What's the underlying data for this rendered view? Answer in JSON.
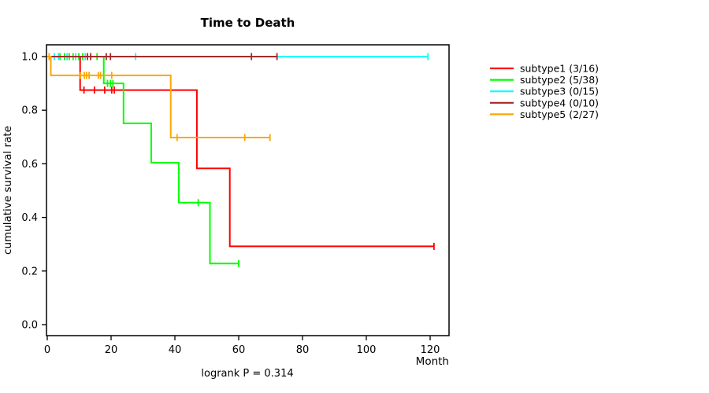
{
  "title": "Time to Death",
  "axes": {
    "x": {
      "label": "Month",
      "ticks": [
        "0",
        "20",
        "40",
        "60",
        "80",
        "100",
        "120"
      ],
      "tick_values": [
        0,
        20,
        40,
        60,
        80,
        100,
        120
      ]
    },
    "y": {
      "label": "cumulative survival rate",
      "ticks": [
        "0.0",
        "0.2",
        "0.4",
        "0.6",
        "0.8",
        "1.0"
      ],
      "tick_values": [
        0,
        0.2,
        0.4,
        0.6,
        0.8,
        1.0
      ]
    }
  },
  "footer": {
    "logrank_text": "logrank P = 0.314"
  },
  "chart_data": {
    "type": "line",
    "subtype": "kaplan-meier-step",
    "title": "Time to Death",
    "xlabel": "Month",
    "ylabel": "cumulative survival rate",
    "xlim": [
      0,
      126
    ],
    "ylim": [
      0,
      1.0
    ],
    "grid": false,
    "legend_position": "right",
    "series": [
      {
        "name": "subtype1",
        "legend_label": "subtype1 (3/16)",
        "color": "#ff0000",
        "steps": [
          [
            0,
            1.0
          ],
          [
            10.3,
            0.875
          ],
          [
            46.9,
            0.583
          ],
          [
            57.2,
            0.292
          ]
        ],
        "end_month": 121.2,
        "censors": [
          [
            11.5,
            0.875
          ],
          [
            14.8,
            0.875
          ],
          [
            18.0,
            0.875
          ],
          [
            20.2,
            0.875
          ],
          [
            21.0,
            0.875
          ],
          [
            121.2,
            0.292
          ]
        ]
      },
      {
        "name": "subtype2",
        "legend_label": "subtype2 (5/38)",
        "color": "#00ff00",
        "steps": [
          [
            0,
            1.0
          ],
          [
            17.7,
            0.9
          ],
          [
            23.9,
            0.751
          ],
          [
            32.6,
            0.604
          ],
          [
            41.2,
            0.455
          ],
          [
            51.0,
            0.228
          ]
        ],
        "end_month": 60.0,
        "censors": [
          [
            4.0,
            1.0
          ],
          [
            5.4,
            1.0
          ],
          [
            6.9,
            1.0
          ],
          [
            8.1,
            1.0
          ],
          [
            9.9,
            1.0
          ],
          [
            11.1,
            1.0
          ],
          [
            15.6,
            1.0
          ],
          [
            18.9,
            0.9
          ],
          [
            19.8,
            0.9
          ],
          [
            20.6,
            0.9
          ],
          [
            47.3,
            0.455
          ],
          [
            60.0,
            0.228
          ]
        ]
      },
      {
        "name": "subtype3",
        "legend_label": "subtype3 (0/15)",
        "color": "#00ffff",
        "steps": [
          [
            0,
            1.0
          ]
        ],
        "end_month": 119.3,
        "censors": [
          [
            2.2,
            1.0
          ],
          [
            3.5,
            1.0
          ],
          [
            6.2,
            1.0
          ],
          [
            8.9,
            1.0
          ],
          [
            11.9,
            1.0
          ],
          [
            27.7,
            1.0
          ],
          [
            119.3,
            1.0
          ]
        ]
      },
      {
        "name": "subtype4",
        "legend_label": "subtype4 (0/10)",
        "color": "#a52a2a",
        "steps": [
          [
            0,
            1.0
          ]
        ],
        "end_month": 72.0,
        "censors": [
          [
            12.6,
            1.0
          ],
          [
            13.6,
            1.0
          ],
          [
            18.5,
            1.0
          ],
          [
            19.8,
            1.0
          ],
          [
            64.0,
            1.0
          ],
          [
            72.0,
            1.0
          ]
        ]
      },
      {
        "name": "subtype5",
        "legend_label": "subtype5 (2/27)",
        "color": "#ffa500",
        "steps": [
          [
            0,
            1.0
          ],
          [
            1.1,
            0.93
          ],
          [
            38.7,
            0.698
          ]
        ],
        "end_month": 69.8,
        "censors": [
          [
            0.6,
            1.0
          ],
          [
            10.4,
            0.93
          ],
          [
            11.6,
            0.93
          ],
          [
            12.3,
            0.93
          ],
          [
            13.1,
            0.93
          ],
          [
            16.0,
            0.93
          ],
          [
            16.7,
            0.93
          ],
          [
            20.2,
            0.93
          ],
          [
            40.7,
            0.698
          ],
          [
            61.9,
            0.698
          ],
          [
            69.8,
            0.698
          ]
        ]
      }
    ]
  }
}
